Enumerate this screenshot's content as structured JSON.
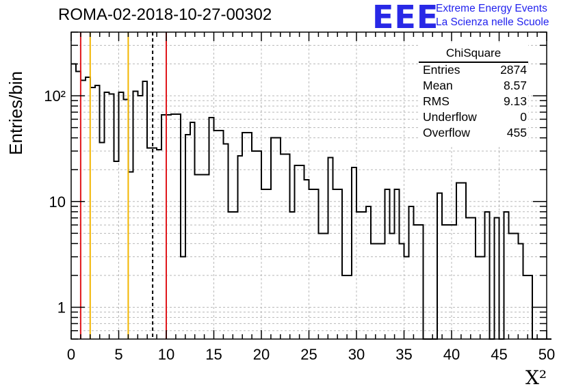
{
  "header": {
    "title": "ROMA-02-2018-10-27-00302"
  },
  "logo": {
    "mark": "EEE",
    "line1": "Extreme Energy Events",
    "line2": "La Scienza nelle Scuole"
  },
  "stats_box": {
    "title": "ChiSquare",
    "rows": [
      {
        "key": "Entries",
        "value": "2874"
      },
      {
        "key": "Mean",
        "value": "8.57"
      },
      {
        "key": "RMS",
        "value": "9.13"
      },
      {
        "key": "Underflow",
        "value": "0"
      },
      {
        "key": "Overflow",
        "value": "455"
      }
    ]
  },
  "colors": {
    "red_lines": "#e0161b",
    "orange_lines": "#f2b600",
    "histogram": "#000000",
    "grid": "#b8b8b8"
  },
  "chart_data": {
    "type": "histogram",
    "title": "ROMA-02-2018-10-27-00302",
    "xlabel": "X²",
    "ylabel": "Entries/bin",
    "xlim": [
      0,
      50
    ],
    "ylim": [
      0.5,
      400
    ],
    "ylog": true,
    "grid": true,
    "bin_width": 0.5,
    "x_ticks": [
      "0",
      "5",
      "10",
      "15",
      "20",
      "25",
      "30",
      "35",
      "40",
      "45",
      "50"
    ],
    "y_ticks": [
      {
        "value": 1,
        "label": "1"
      },
      {
        "value": 10,
        "label": "10"
      },
      {
        "value": 100,
        "label": "10²"
      }
    ],
    "values": [
      200,
      170,
      140,
      150,
      120,
      125,
      36,
      108,
      104,
      24,
      108,
      92,
      19,
      110,
      100,
      137,
      32,
      32,
      31,
      66,
      66,
      67,
      67,
      3,
      43,
      56,
      18,
      18,
      18,
      62,
      47,
      47,
      35,
      8,
      8,
      27,
      45,
      45,
      30,
      30,
      13,
      13,
      40,
      40,
      28,
      28,
      8,
      22,
      22,
      16,
      13,
      13,
      5,
      5,
      26,
      13,
      13,
      2,
      2,
      21,
      8,
      8,
      9,
      4,
      4,
      4,
      13,
      5,
      13,
      4,
      3,
      9,
      6,
      6,
      0.5,
      0.5,
      0.5,
      12,
      6,
      6,
      6,
      15,
      15,
      7,
      7,
      3,
      3,
      8,
      0.5,
      7,
      0.5,
      8,
      5,
      5,
      4,
      2,
      2,
      0.5,
      0.5,
      0.5,
      0.5
    ],
    "vlines": [
      {
        "x": 1,
        "style": "solid",
        "color": "red"
      },
      {
        "x": 2,
        "style": "solid",
        "color": "orange"
      },
      {
        "x": 6,
        "style": "solid",
        "color": "orange"
      },
      {
        "x": 8.57,
        "style": "dashed",
        "color": "black"
      },
      {
        "x": 10,
        "style": "solid",
        "color": "red"
      }
    ]
  }
}
